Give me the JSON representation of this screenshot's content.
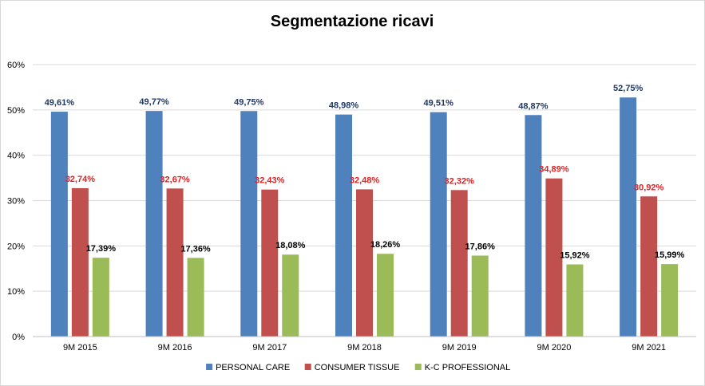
{
  "chart_data": {
    "type": "bar",
    "title": "Segmentazione ricavi",
    "xlabel": "",
    "ylabel": "",
    "categories": [
      "9M 2015",
      "9M 2016",
      "9M 2017",
      "9M 2018",
      "9M 2019",
      "9M 2020",
      "9M 2021"
    ],
    "series": [
      {
        "name": "PERSONAL CARE",
        "color": "#4f81bd",
        "label_color": "#1f3864",
        "values": [
          49.61,
          49.77,
          49.75,
          48.98,
          49.51,
          48.87,
          52.75
        ],
        "labels": [
          "49,61%",
          "49,77%",
          "49,75%",
          "48,98%",
          "49,51%",
          "48,87%",
          "52,75%"
        ]
      },
      {
        "name": "CONSUMER TISSUE",
        "color": "#c0504d",
        "label_color": "#e02020",
        "values": [
          32.74,
          32.67,
          32.43,
          32.48,
          32.32,
          34.89,
          30.92
        ],
        "labels": [
          "32,74%",
          "32,67%",
          "32,43%",
          "32,48%",
          "32,32%",
          "34,89%",
          "30,92%"
        ]
      },
      {
        "name": "K-C PROFESSIONAL",
        "color": "#9bbb59",
        "label_color": "#000000",
        "values": [
          17.39,
          17.36,
          18.08,
          18.26,
          17.86,
          15.92,
          15.99
        ],
        "labels": [
          "17,39%",
          "17,36%",
          "18,08%",
          "18,26%",
          "17,86%",
          "15,92%",
          "15,99%"
        ]
      }
    ],
    "ylim": [
      0,
      60
    ],
    "y_ticks": [
      0,
      10,
      20,
      30,
      40,
      50,
      60
    ],
    "y_tick_labels": [
      "0%",
      "10%",
      "20%",
      "30%",
      "40%",
      "50%",
      "60%"
    ],
    "grid": true,
    "grid_color": "#d9d9d9",
    "legend_position": "bottom"
  }
}
